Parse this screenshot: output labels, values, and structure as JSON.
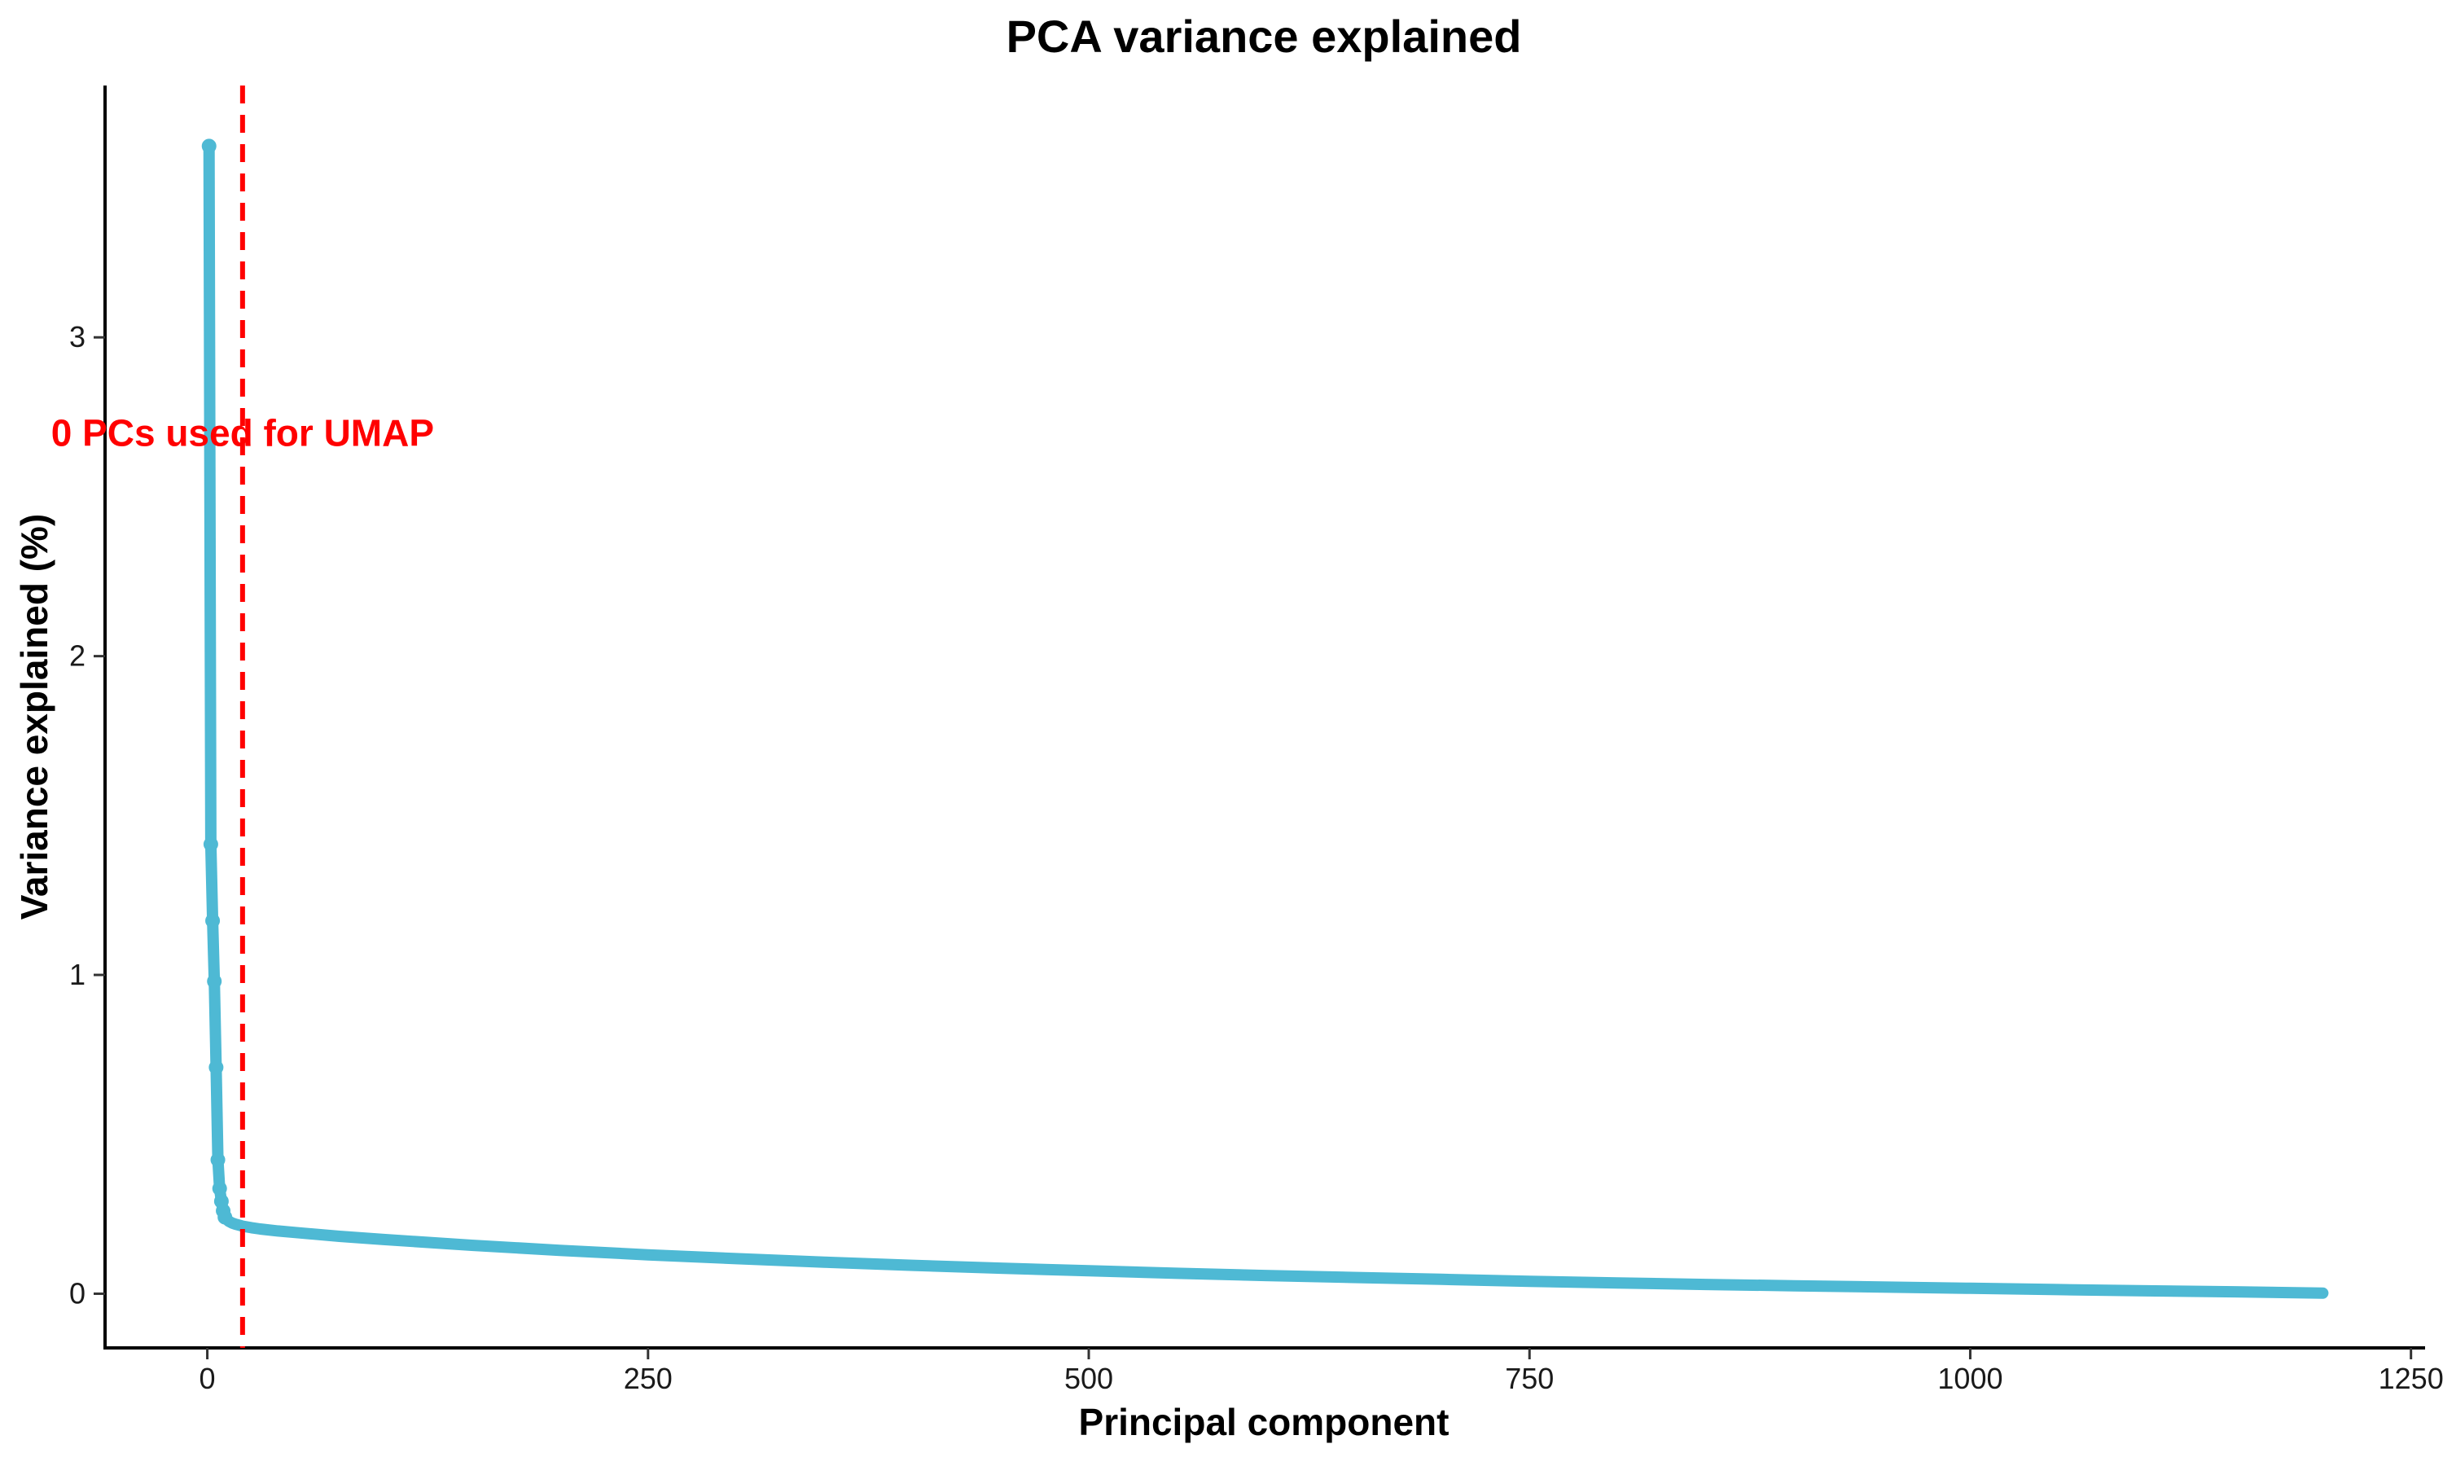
{
  "chart_data": {
    "type": "line",
    "title": "PCA variance explained",
    "xlabel": "Principal component",
    "ylabel": "Variance explained (%)",
    "xlim": [
      -58,
      1258
    ],
    "ylim": [
      -0.17,
      3.79
    ],
    "x_ticks": [
      0,
      250,
      500,
      750,
      1000,
      1250
    ],
    "x_tick_labels": [
      "0",
      "250",
      "500",
      "750",
      "1000",
      "1250"
    ],
    "y_ticks": [
      0,
      1,
      2,
      3
    ],
    "y_tick_labels": [
      "0",
      "1",
      "2",
      "3"
    ],
    "grid": false,
    "legend": "none",
    "series": [
      {
        "color": "#4EB9D4",
        "x": [
          1,
          2,
          3,
          4,
          5,
          6,
          7,
          8,
          9,
          10,
          12,
          14,
          16,
          18,
          20,
          25,
          30,
          40,
          50,
          75,
          100,
          150,
          200,
          250,
          300,
          350,
          400,
          450,
          500,
          550,
          600,
          650,
          700,
          750,
          800,
          850,
          900,
          950,
          1000,
          1050,
          1100,
          1150,
          1200
        ],
        "y": [
          3.6,
          1.41,
          1.17,
          0.98,
          0.71,
          0.42,
          0.33,
          0.29,
          0.26,
          0.24,
          0.228,
          0.222,
          0.218,
          0.215,
          0.212,
          0.207,
          0.203,
          0.197,
          0.192,
          0.18,
          0.17,
          0.152,
          0.136,
          0.122,
          0.11,
          0.099,
          0.089,
          0.08,
          0.072,
          0.064,
          0.057,
          0.051,
          0.045,
          0.039,
          0.034,
          0.029,
          0.025,
          0.021,
          0.017,
          0.013,
          0.009,
          0.006,
          0.002
        ],
        "markers_x": [
          1,
          2,
          3,
          4,
          5,
          6,
          7,
          8,
          9,
          10
        ],
        "markers_y": [
          3.6,
          1.41,
          1.17,
          0.98,
          0.71,
          0.42,
          0.33,
          0.29,
          0.26,
          0.24
        ]
      }
    ],
    "cutoff": {
      "x": 20,
      "color": "#FF0000",
      "style": "dashed",
      "label": "0 PCs used for UMAP",
      "label_y": 2.7
    }
  }
}
